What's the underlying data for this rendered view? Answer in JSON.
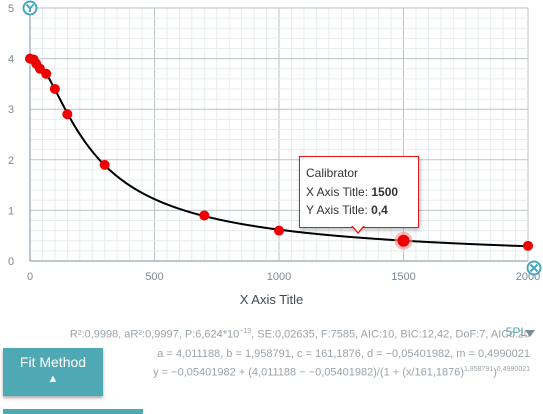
{
  "chart_data": {
    "type": "scatter",
    "xlabel": "X Axis Title",
    "ylabel": "",
    "xlim": [
      0,
      2000
    ],
    "ylim": [
      0,
      5
    ],
    "x_ticks": [
      0,
      500,
      1000,
      1500,
      2000
    ],
    "y_ticks": [
      0,
      1,
      2,
      3,
      4,
      5
    ],
    "grid": true,
    "model": "5PL",
    "fit": {
      "a": 4.011188,
      "b": 1.958791,
      "c": 161.1876,
      "d": -0.05401982,
      "m": 0.4990021
    },
    "series": [
      {
        "points": [
          {
            "x": 0,
            "y": 4.0
          },
          {
            "x": 15,
            "y": 3.98
          },
          {
            "x": 25,
            "y": 3.9
          },
          {
            "x": 40,
            "y": 3.8
          },
          {
            "x": 65,
            "y": 3.7
          },
          {
            "x": 100,
            "y": 3.4
          },
          {
            "x": 150,
            "y": 2.9
          },
          {
            "x": 300,
            "y": 1.9
          },
          {
            "x": 700,
            "y": 0.9
          },
          {
            "x": 1000,
            "y": 0.6
          },
          {
            "x": 1500,
            "y": 0.4
          },
          {
            "x": 2000,
            "y": 0.3
          }
        ]
      }
    ],
    "highlighted_point": {
      "x": 1500,
      "y": 0.4
    }
  },
  "axis_icons": {
    "y": "y-axis-icon",
    "x": "x-axis-icon"
  },
  "tooltip": {
    "title": "Calibrator",
    "x_label": "X Axis Title:",
    "x_value": "1500",
    "y_label": "Y Axis Title:",
    "y_value": "0,4"
  },
  "stats": {
    "line1_main": "R²:0,9998, aR²:0,9997, P:6,624*10",
    "line1_exp": "−13",
    "line1_rest": ", SE:0,02635, F:7585, AIC:10, BIC:12,42, DoF:7, AICc:20",
    "params": "a = 4,011188, b = 1,958791, c = 161,1876, d = −0,05401982, m = 0,4990021",
    "eq_main": "y = −0,05401982 + (4,011188 − −0,05401982)/(1 + (x/161,1876)",
    "eq_exp": "1,958791",
    "eq_close": ")",
    "eq_exp2": "0,4990021"
  },
  "fit_button": {
    "label": "Fit Method",
    "arrow": "▲"
  },
  "colors": {
    "accent": "#4fa9b5",
    "point": "#ee0000",
    "curve": "#000000",
    "grid": "#e6ecef"
  }
}
